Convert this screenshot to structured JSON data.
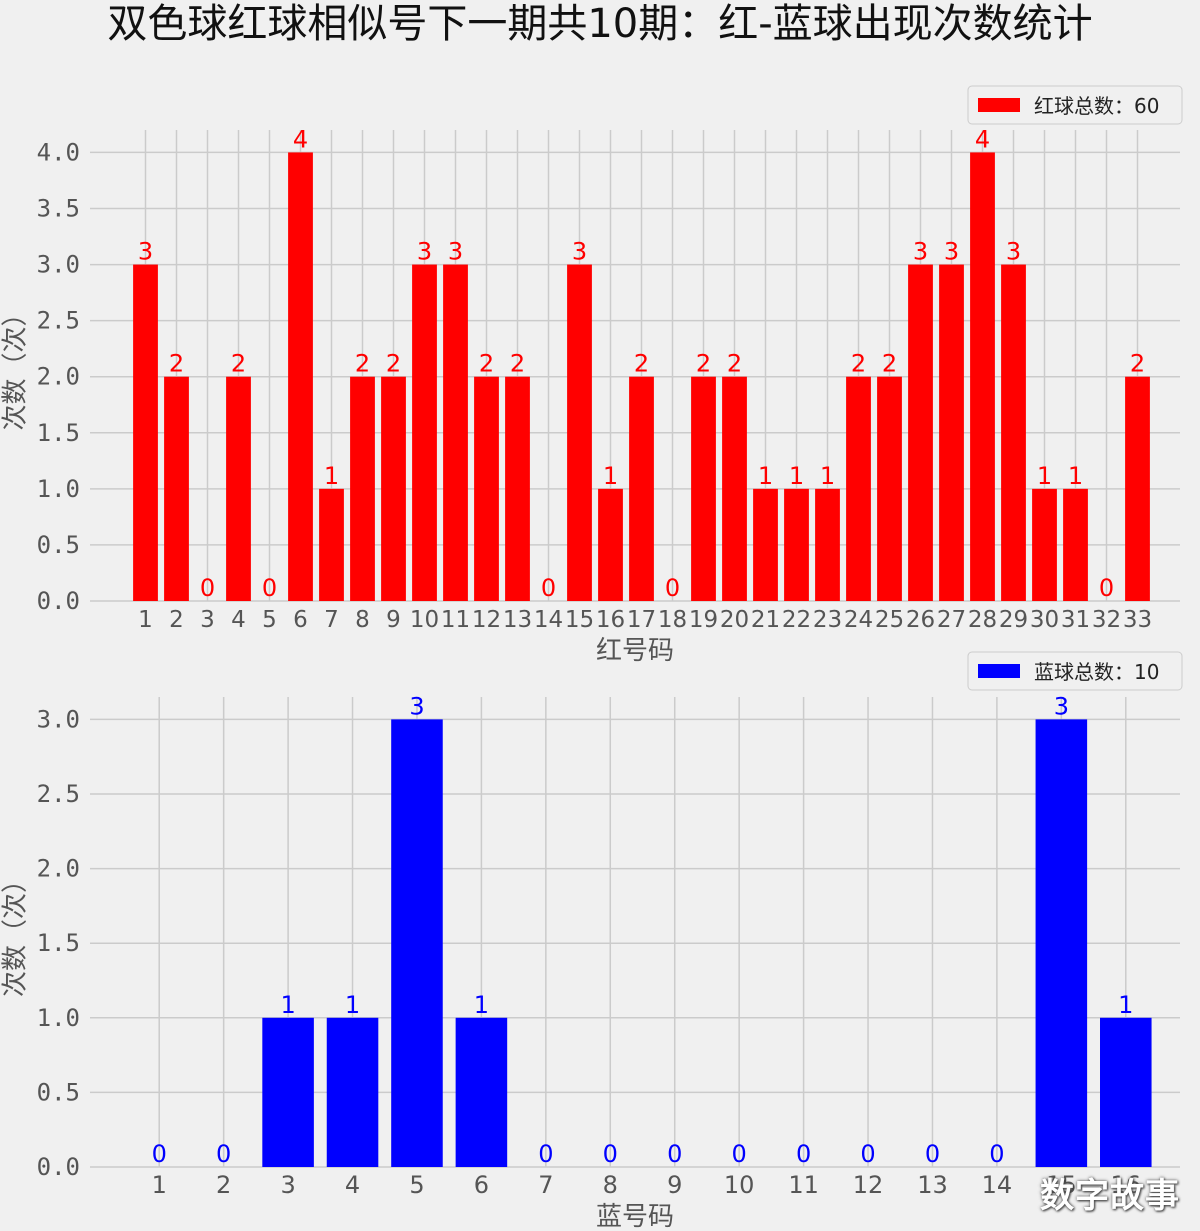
{
  "title": "双色球红球相似号下一期共10期：红-蓝球出现次数统计",
  "watermark": "数字故事",
  "chart_data": [
    {
      "type": "bar",
      "color": "#ff0000",
      "categories": [
        "1",
        "2",
        "3",
        "4",
        "5",
        "6",
        "7",
        "8",
        "9",
        "10",
        "11",
        "12",
        "13",
        "14",
        "15",
        "16",
        "17",
        "18",
        "19",
        "20",
        "21",
        "22",
        "23",
        "24",
        "25",
        "26",
        "27",
        "28",
        "29",
        "30",
        "31",
        "32",
        "33"
      ],
      "values": [
        3,
        2,
        0,
        2,
        0,
        4,
        1,
        2,
        2,
        3,
        3,
        2,
        2,
        0,
        3,
        1,
        2,
        0,
        2,
        2,
        1,
        1,
        1,
        2,
        2,
        3,
        3,
        4,
        3,
        1,
        1,
        0,
        2
      ],
      "xlabel": "红号码",
      "ylabel": "次数（次）",
      "ylim": [
        0,
        4.2
      ],
      "yticks": [
        "0.0",
        "0.5",
        "1.0",
        "1.5",
        "2.0",
        "2.5",
        "3.0",
        "3.5",
        "4.0"
      ],
      "legend": "红球总数：60",
      "legend_position": "top-right",
      "grid": true
    },
    {
      "type": "bar",
      "color": "#0000ff",
      "categories": [
        "1",
        "2",
        "3",
        "4",
        "5",
        "6",
        "7",
        "8",
        "9",
        "10",
        "11",
        "12",
        "13",
        "14",
        "15",
        "16"
      ],
      "values": [
        0,
        0,
        1,
        1,
        3,
        1,
        0,
        0,
        0,
        0,
        0,
        0,
        0,
        0,
        3,
        1
      ],
      "xlabel": "蓝号码",
      "ylabel": "次数（次）",
      "ylim": [
        0,
        3.15
      ],
      "yticks": [
        "0.0",
        "0.5",
        "1.0",
        "1.5",
        "2.0",
        "2.5",
        "3.0"
      ],
      "legend": "蓝球总数：10",
      "legend_position": "top-right",
      "grid": true
    }
  ]
}
